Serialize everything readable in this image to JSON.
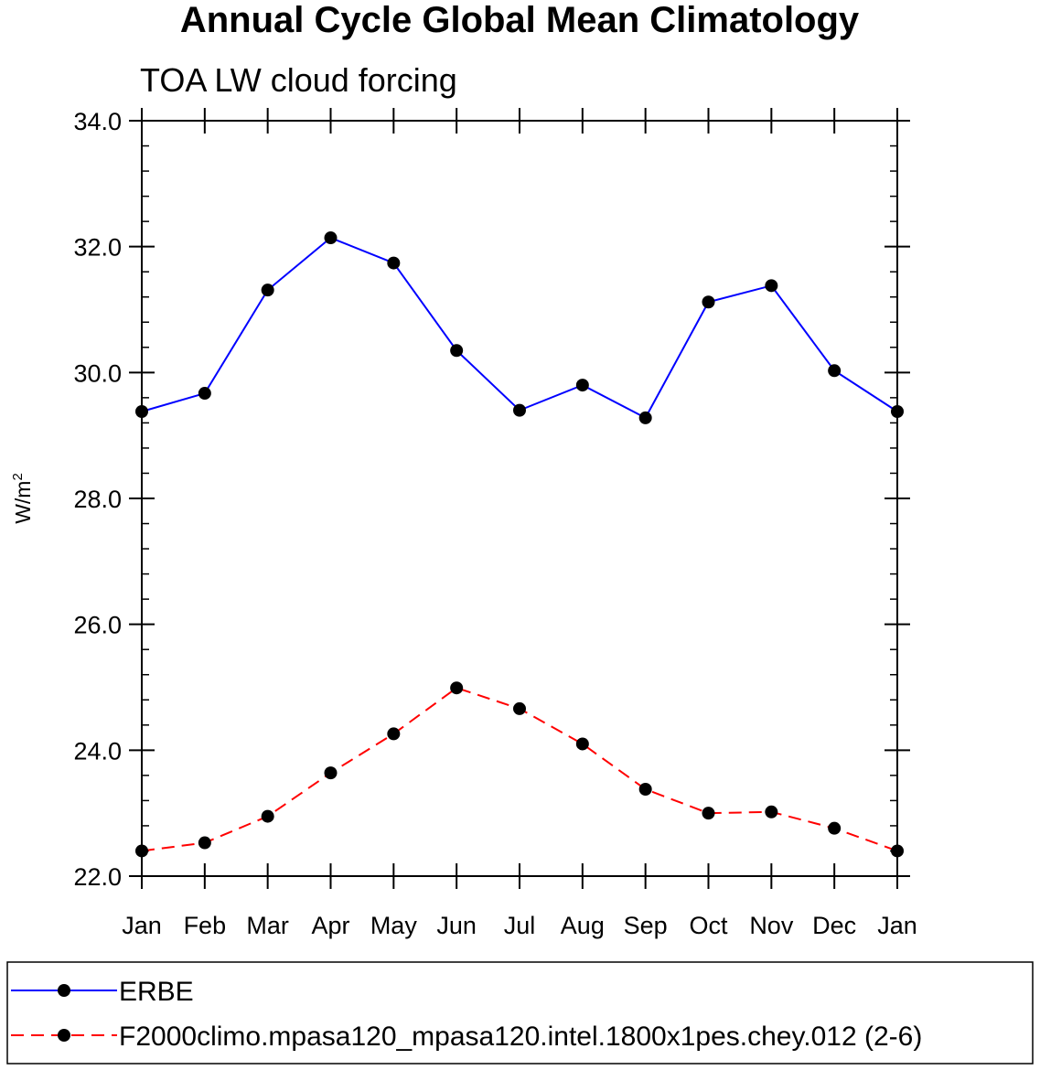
{
  "chart_data": {
    "type": "line",
    "title": "Annual Cycle Global Mean Climatology",
    "subtitle": "TOA LW cloud forcing",
    "ylabel": "W/m",
    "ylabel_superscript": "2",
    "xlabel": "",
    "categories": [
      "Jan",
      "Feb",
      "Mar",
      "Apr",
      "May",
      "Jun",
      "Jul",
      "Aug",
      "Sep",
      "Oct",
      "Nov",
      "Dec",
      "Jan"
    ],
    "ylim": [
      22.0,
      34.0
    ],
    "yticks": [
      "22.0",
      "24.0",
      "26.0",
      "28.0",
      "30.0",
      "32.0",
      "34.0"
    ],
    "series": [
      {
        "name": "ERBE",
        "color": "#0000ff",
        "dash": "solid",
        "values": [
          29.38,
          29.67,
          31.31,
          32.14,
          31.74,
          30.35,
          29.4,
          29.8,
          29.28,
          31.12,
          31.38,
          30.03,
          29.38
        ]
      },
      {
        "name": "F2000climo.mpasa120_mpasa120.intel.1800x1pes.chey.012 (2-6)",
        "color": "#ff0000",
        "dash": "dashed",
        "values": [
          22.4,
          22.53,
          22.95,
          23.64,
          24.26,
          24.99,
          24.66,
          24.1,
          23.38,
          23.0,
          23.02,
          22.76,
          22.4
        ]
      }
    ],
    "marker_color": "#000000",
    "legend_location": "bottom"
  }
}
